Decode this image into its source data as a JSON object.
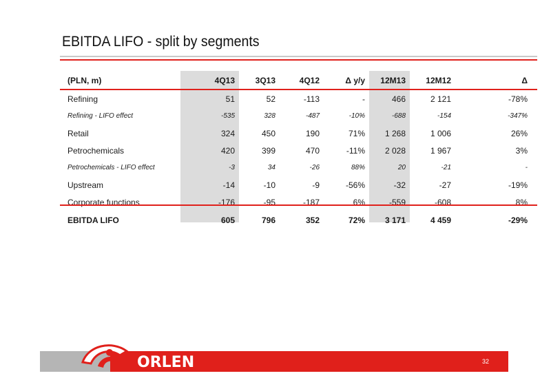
{
  "title": "EBITDA LIFO - split by segments",
  "table": {
    "headers": [
      "(PLN, m)",
      "4Q13",
      "3Q13",
      "4Q12",
      "Δ y/y",
      "12M13",
      "12M12",
      "Δ"
    ],
    "rows": [
      {
        "label": "Refining",
        "values": [
          "51",
          "52",
          "-113",
          "-",
          "466",
          "2 121",
          "-78%"
        ]
      },
      {
        "label": "Refining - LIFO effect",
        "values": [
          "-535",
          "328",
          "-487",
          "-10%",
          "-688",
          "-154",
          "-347%"
        ]
      },
      {
        "label": "Retail",
        "values": [
          "324",
          "450",
          "190",
          "71%",
          "1 268",
          "1 006",
          "26%"
        ]
      },
      {
        "label": "Petrochemicals",
        "values": [
          "420",
          "399",
          "470",
          "-11%",
          "2 028",
          "1 967",
          "3%"
        ]
      },
      {
        "label": "Petrochemicals - LIFO effect",
        "values": [
          "-3",
          "34",
          "-26",
          "88%",
          "20",
          "-21",
          "-"
        ]
      },
      {
        "label": "Upstream",
        "values": [
          "-14",
          "-10",
          "-9",
          "-56%",
          "-32",
          "-27",
          "-19%"
        ]
      },
      {
        "label": "Corporate functions",
        "values": [
          "-176",
          "-95",
          "-187",
          "6%",
          "-559",
          "-608",
          "8%"
        ]
      }
    ],
    "total": {
      "label": "EBITDA LIFO",
      "values": [
        "605",
        "796",
        "352",
        "72%",
        "3 171",
        "4 459",
        "-29%"
      ]
    }
  },
  "footer": {
    "brand": "ORLEN",
    "page_number": "32"
  },
  "colors": {
    "accent": "#e0201b",
    "shade": "#dcdcdc",
    "footer_gray": "#b5b5b5"
  }
}
